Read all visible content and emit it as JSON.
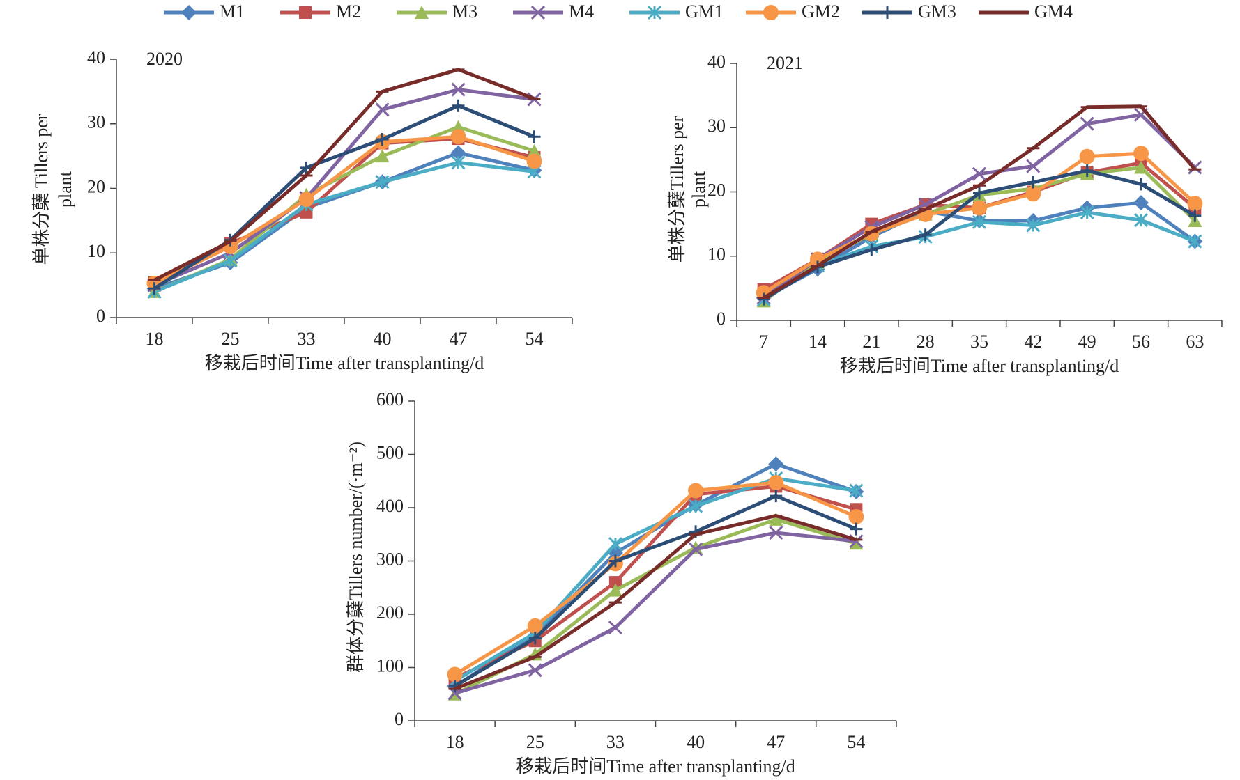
{
  "chart_data": [
    {
      "type": "line",
      "label": "2020",
      "categories": [
        "18",
        "25",
        "33",
        "40",
        "47",
        "54"
      ],
      "x_label": "移栽后时间Time after transplanting/d",
      "y_label": [
        "单株分蘖 Tillers per",
        "plant"
      ],
      "ylim": [
        0,
        40
      ],
      "yticks": [
        0,
        10,
        20,
        30,
        40
      ],
      "series": [
        {
          "name": "M1",
          "color": "#4f81bd",
          "marker": "diamond",
          "values": [
            4.5,
            8.5,
            17,
            21,
            25.5,
            22.8
          ]
        },
        {
          "name": "M2",
          "color": "#c0504d",
          "marker": "square",
          "values": [
            5.5,
            11.5,
            16.3,
            27,
            27.7,
            24.8
          ]
        },
        {
          "name": "M3",
          "color": "#9bbb59",
          "marker": "triangle",
          "values": [
            4,
            9,
            19,
            25,
            29.5,
            25.8
          ]
        },
        {
          "name": "M4",
          "color": "#8064a2",
          "marker": "x",
          "values": [
            5,
            10,
            18.5,
            32.2,
            35.3,
            33.8
          ]
        },
        {
          "name": "GM1",
          "color": "#4bacc6",
          "marker": "asterisk",
          "values": [
            4,
            8.8,
            17.5,
            21,
            24,
            22.6
          ]
        },
        {
          "name": "GM2",
          "color": "#f79646",
          "marker": "circle",
          "values": [
            5.3,
            11,
            18.3,
            27.2,
            28,
            24.2
          ]
        },
        {
          "name": "GM3",
          "color": "#2c4d75",
          "marker": "plus",
          "values": [
            4.5,
            12,
            23.2,
            27.6,
            32.8,
            28
          ]
        },
        {
          "name": "GM4",
          "color": "#772c2a",
          "marker": "dash",
          "values": [
            5.8,
            11.8,
            22,
            35,
            38.4,
            33.9
          ]
        }
      ]
    },
    {
      "type": "line",
      "label": "2021",
      "categories": [
        "7",
        "14",
        "21",
        "28",
        "35",
        "42",
        "49",
        "56",
        "63"
      ],
      "x_label": "移栽后时间Time after transplanting/d",
      "y_label": [
        "单株分蘖Tillers per",
        "plant"
      ],
      "ylim": [
        0,
        40
      ],
      "yticks": [
        0,
        10,
        20,
        30,
        40
      ],
      "series": [
        {
          "name": "M1",
          "color": "#4f81bd",
          "marker": "diamond",
          "values": [
            3.5,
            8,
            13,
            17,
            15.5,
            15.5,
            17.5,
            18.3,
            12.3
          ]
        },
        {
          "name": "M2",
          "color": "#c0504d",
          "marker": "square",
          "values": [
            4.8,
            9.5,
            15,
            18,
            17.5,
            20,
            23,
            24.5,
            17.5
          ]
        },
        {
          "name": "M3",
          "color": "#9bbb59",
          "marker": "triangle",
          "values": [
            3,
            9,
            13.5,
            16.5,
            19.5,
            20.5,
            22.8,
            23.8,
            15.5
          ]
        },
        {
          "name": "M4",
          "color": "#8064a2",
          "marker": "x",
          "values": [
            3.5,
            9.5,
            14.5,
            18,
            22.8,
            24,
            30.6,
            32,
            23.8
          ]
        },
        {
          "name": "GM1",
          "color": "#4bacc6",
          "marker": "asterisk",
          "values": [
            3.2,
            8.5,
            11.5,
            13,
            15.3,
            14.8,
            16.8,
            15.6,
            12.3
          ]
        },
        {
          "name": "GM2",
          "color": "#f79646",
          "marker": "circle",
          "values": [
            4.3,
            9.5,
            13.5,
            16.5,
            17.5,
            19.7,
            25.5,
            26,
            18.2
          ]
        },
        {
          "name": "GM3",
          "color": "#2c4d75",
          "marker": "plus",
          "values": [
            3.3,
            8.3,
            11,
            13.3,
            19.8,
            21.5,
            23.3,
            21.2,
            16.3
          ]
        },
        {
          "name": "GM4",
          "color": "#772c2a",
          "marker": "dash",
          "values": [
            3.5,
            8.5,
            13.8,
            17.3,
            21,
            26.8,
            33.2,
            33.3,
            23.5
          ]
        }
      ]
    },
    {
      "type": "line",
      "categories": [
        "18",
        "25",
        "33",
        "40",
        "47",
        "54"
      ],
      "x_label": "移栽后时间Time after transplanting/d",
      "y_label": [
        "群体分蘖Tillers number/(·m⁻²)"
      ],
      "ylim": [
        0,
        600
      ],
      "yticks": [
        0,
        100,
        200,
        300,
        400,
        500,
        600
      ],
      "series": [
        {
          "name": "M1",
          "color": "#4f81bd",
          "marker": "diamond",
          "values": [
            65,
            160,
            315,
            405,
            482,
            430
          ]
        },
        {
          "name": "M2",
          "color": "#c0504d",
          "marker": "square",
          "values": [
            80,
            150,
            260,
            425,
            440,
            397
          ]
        },
        {
          "name": "M3",
          "color": "#9bbb59",
          "marker": "triangle",
          "values": [
            50,
            125,
            245,
            325,
            378,
            333
          ]
        },
        {
          "name": "M4",
          "color": "#8064a2",
          "marker": "x",
          "values": [
            52,
            95,
            175,
            322,
            353,
            337
          ]
        },
        {
          "name": "GM1",
          "color": "#4bacc6",
          "marker": "asterisk",
          "values": [
            75,
            165,
            332,
            403,
            455,
            432
          ]
        },
        {
          "name": "GM2",
          "color": "#f79646",
          "marker": "circle",
          "values": [
            87,
            178,
            295,
            432,
            447,
            383
          ]
        },
        {
          "name": "GM3",
          "color": "#2c4d75",
          "marker": "plus",
          "values": [
            65,
            155,
            300,
            355,
            422,
            360
          ]
        },
        {
          "name": "GM4",
          "color": "#772c2a",
          "marker": "dash",
          "values": [
            60,
            120,
            222,
            350,
            385,
            340
          ]
        }
      ]
    }
  ]
}
